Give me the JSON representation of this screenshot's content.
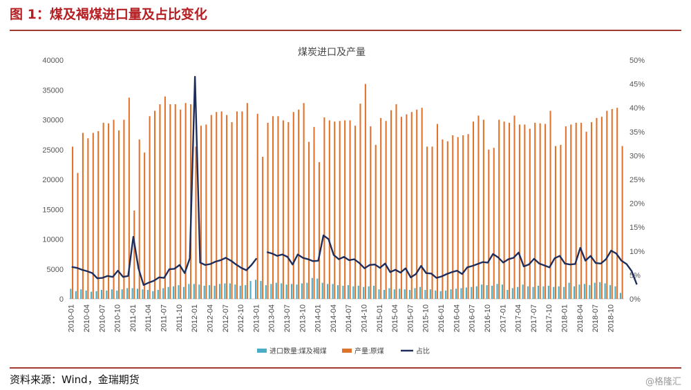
{
  "header": {
    "title": "图 1：煤及褐煤进口量及占比变化"
  },
  "footer": {
    "source": "资料来源：Wind，金瑞期货",
    "watermark": "@格隆汇"
  },
  "colors": {
    "import": "#4bacc6",
    "production": "#e0732c",
    "ratio": "#1f2d5a"
  },
  "chart_data": {
    "type": "bar",
    "title": "煤炭进口及产量",
    "left_axis": {
      "min": 0,
      "max": 40000,
      "ticks": [
        0,
        5000,
        10000,
        15000,
        20000,
        25000,
        30000,
        35000,
        40000
      ]
    },
    "right_axis": {
      "min": 0,
      "max": 50,
      "unit": "%",
      "ticks": [
        "0%",
        "5%",
        "10%",
        "15%",
        "20%",
        "25%",
        "30%",
        "35%",
        "40%",
        "45%",
        "50%"
      ]
    },
    "start": "2010-01",
    "months": 108,
    "x_tick_labels": [
      "2010-01",
      "2010-04",
      "2010-07",
      "2010-10",
      "2011-01",
      "2011-04",
      "2011-07",
      "2011-10",
      "2012-01",
      "2012-04",
      "2012-07",
      "2012-10",
      "2013-01",
      "2013-04",
      "2013-07",
      "2013-10",
      "2014-01",
      "2014-04",
      "2014-07",
      "2014-10",
      "2015-01",
      "2015-04",
      "2015-07",
      "2015-10",
      "2016-01",
      "2016-04",
      "2016-07",
      "2016-10",
      "2017-01",
      "2017-04",
      "2017-07",
      "2017-10",
      "2018-01",
      "2018-04",
      "2018-07",
      "2018-10"
    ],
    "legend": {
      "placement": "bottom",
      "items": [
        "进口数量:煤及褐煤",
        "产量:原煤",
        "占比"
      ]
    },
    "series": [
      {
        "name": "进口数量:煤及褐煤",
        "axis": "left",
        "type": "bar",
        "values": [
          1700,
          1300,
          1600,
          1400,
          1200,
          1300,
          1500,
          1400,
          1600,
          1400,
          1600,
          1800,
          1800,
          1700,
          1600,
          1500,
          1300,
          1500,
          1800,
          2000,
          2100,
          2300,
          2000,
          2500,
          2500,
          2400,
          2200,
          2300,
          2200,
          2500,
          2600,
          2600,
          2400,
          2200,
          2300,
          3000,
          3200,
          3000,
          2300,
          2500,
          2700,
          2600,
          2400,
          2500,
          2400,
          2600,
          2700,
          3500,
          3400,
          2700,
          2500,
          2500,
          2300,
          2200,
          2300,
          2100,
          2200,
          2000,
          2100,
          2200,
          1600,
          1500,
          1800,
          1600,
          1700,
          1600,
          1500,
          1800,
          2000,
          1500,
          1600,
          1400,
          1300,
          1400,
          1600,
          1700,
          1800,
          1900,
          2000,
          2100,
          2400,
          2300,
          2200,
          2500,
          2400,
          1500,
          1800,
          2000,
          2400,
          2100,
          2000,
          2200,
          2100,
          2200,
          2000,
          2100,
          2000,
          2700,
          2100,
          2400,
          2500,
          2300,
          2700,
          2800,
          2600,
          2300,
          2100,
          1000
        ]
      },
      {
        "name": "产量:原煤",
        "axis": "left",
        "type": "bar",
        "values": [
          25500,
          21100,
          27800,
          26900,
          27800,
          28100,
          29500,
          29400,
          30000,
          28200,
          30000,
          33700,
          14800,
          26700,
          24500,
          30600,
          31500,
          32600,
          33900,
          32600,
          32600,
          31700,
          32800,
          32600,
          25500,
          29000,
          29200,
          30800,
          31300,
          31400,
          30800,
          29600,
          31400,
          31400,
          32800,
          null,
          31000,
          23800,
          29500,
          30600,
          30600,
          29900,
          29600,
          31300,
          31700,
          32800,
          26300,
          28800,
          22900,
          30400,
          29900,
          29700,
          29800,
          29900,
          29900,
          29000,
          32700,
          36000,
          28900,
          25800,
          30300,
          29800,
          31600,
          32600,
          30500,
          30900,
          31300,
          31700,
          32000,
          25500,
          25500,
          29300,
          26700,
          26400,
          27400,
          27100,
          27400,
          27600,
          29700,
          30700,
          30000,
          25000,
          25300,
          30000,
          29700,
          29500,
          30700,
          29200,
          29200,
          28500,
          29500,
          29400,
          29300,
          31500,
          25600,
          25800,
          28900,
          29200,
          29500,
          29500,
          28000,
          29600,
          30300,
          30500,
          31500,
          31800,
          32000,
          25600
        ]
      },
      {
        "name": "占比",
        "axis": "right",
        "type": "line",
        "values": [
          6.7,
          6.5,
          6.1,
          5.8,
          5.4,
          4.3,
          4.4,
          4.8,
          4.6,
          5.9,
          4.6,
          4.8,
          13.0,
          6.4,
          2.9,
          3.4,
          3.8,
          4.5,
          4.4,
          6.2,
          6.3,
          7.1,
          5.4,
          8.5,
          46.5,
          7.6,
          7.1,
          7.3,
          7.8,
          8.1,
          8.6,
          8.0,
          7.2,
          6.5,
          6.0,
          7.1,
          8.5,
          null,
          9.8,
          9.5,
          9.0,
          9.3,
          8.8,
          7.2,
          9.3,
          8.6,
          8.3,
          7.9,
          8.0,
          13.3,
          12.5,
          9.2,
          8.3,
          8.8,
          8.1,
          8.3,
          7.5,
          6.4,
          7.1,
          7.2,
          6.5,
          7.4,
          5.6,
          6.1,
          5.5,
          6.4,
          4.5,
          5.2,
          6.9,
          5.4,
          5.3,
          4.4,
          4.7,
          5.2,
          5.6,
          5.9,
          5.2,
          6.6,
          6.9,
          7.3,
          7.7,
          7.6,
          9.4,
          8.7,
          7.6,
          8.3,
          8.6,
          9.7,
          6.8,
          7.2,
          8.4,
          7.4,
          7.0,
          6.6,
          8.5,
          9.0,
          7.4,
          7.2,
          7.3,
          10.7,
          8.0,
          9.0,
          7.5,
          7.4,
          8.3,
          10.1,
          9.5,
          8.0,
          7.3,
          5.8,
          3.0
        ]
      }
    ]
  }
}
